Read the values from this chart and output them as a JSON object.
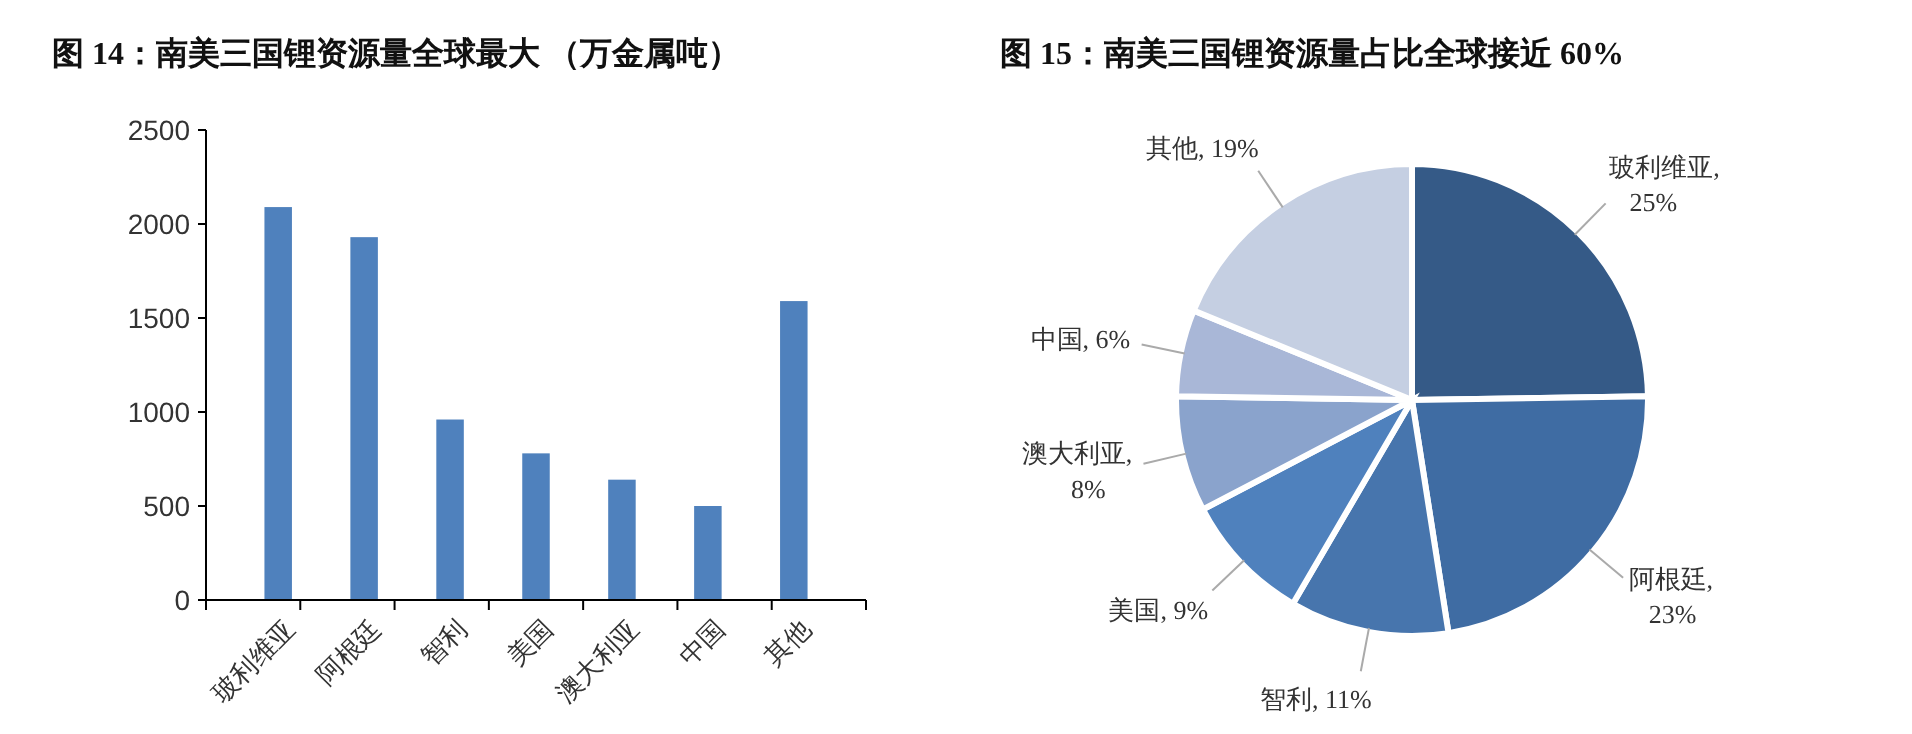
{
  "chart_data": [
    {
      "type": "bar",
      "title": "图 14：南美三国锂资源量全球最大 （万金属吨）",
      "categories": [
        "玻利维亚",
        "阿根廷",
        "智利",
        "美国",
        "澳大利亚",
        "中国",
        "其他"
      ],
      "values": [
        2090,
        1930,
        960,
        780,
        640,
        500,
        1590
      ],
      "color": "#4f81bd",
      "ylim": [
        0,
        2500
      ],
      "yticks": [
        0,
        500,
        1000,
        1500,
        2000,
        2500
      ],
      "grid": false,
      "legend": false
    },
    {
      "type": "pie",
      "title": "图 15：南美三国锂资源量占比全球接近 60%",
      "categories": [
        "玻利维亚",
        "阿根廷",
        "智利",
        "美国",
        "澳大利亚",
        "中国",
        "其他"
      ],
      "values": [
        25,
        23,
        11,
        9,
        8,
        6,
        19
      ],
      "value_labels": [
        ", 25%",
        ", 23%",
        ", 11%",
        ", 9%",
        ", 8%",
        ", 6%",
        ", 19%"
      ],
      "colors": [
        "#355a87",
        "#3f6ca3",
        "#4775ad",
        "#4f81bd",
        "#8aa3cc",
        "#a9b7d7",
        "#c5cfe2"
      ],
      "legend": false
    }
  ]
}
